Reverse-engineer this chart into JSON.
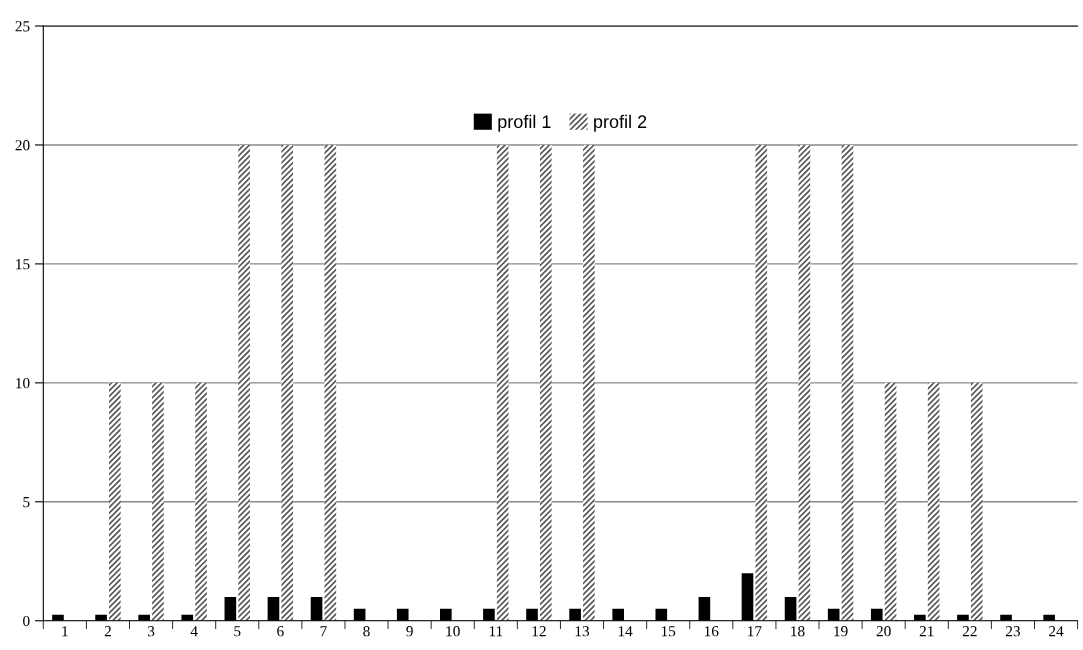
{
  "chart_data": {
    "type": "bar",
    "categories": [
      "1",
      "2",
      "3",
      "4",
      "5",
      "6",
      "7",
      "8",
      "9",
      "10",
      "11",
      "12",
      "13",
      "14",
      "15",
      "16",
      "17",
      "18",
      "19",
      "20",
      "21",
      "22",
      "23",
      "24"
    ],
    "series": [
      {
        "name": "profil 1",
        "color": "#000000",
        "values": [
          0.25,
          0.25,
          0.25,
          0.25,
          1,
          1,
          1,
          0.5,
          0.5,
          0.5,
          0.5,
          0.5,
          0.5,
          0.5,
          0.5,
          1,
          2,
          1,
          0.5,
          0.5,
          0.25,
          0.25,
          0.25,
          0.25
        ]
      },
      {
        "name": "profil 2",
        "color": "#555555",
        "values": [
          0,
          10,
          10,
          10,
          20,
          20,
          20,
          0,
          0,
          0,
          20,
          20,
          20,
          0,
          0,
          0,
          20,
          20,
          20,
          10,
          10,
          10,
          0,
          0
        ]
      }
    ],
    "ylim": [
      0,
      25
    ],
    "yticks": [
      0,
      5,
      10,
      15,
      20,
      25
    ],
    "grid": "y",
    "legend": "top"
  }
}
